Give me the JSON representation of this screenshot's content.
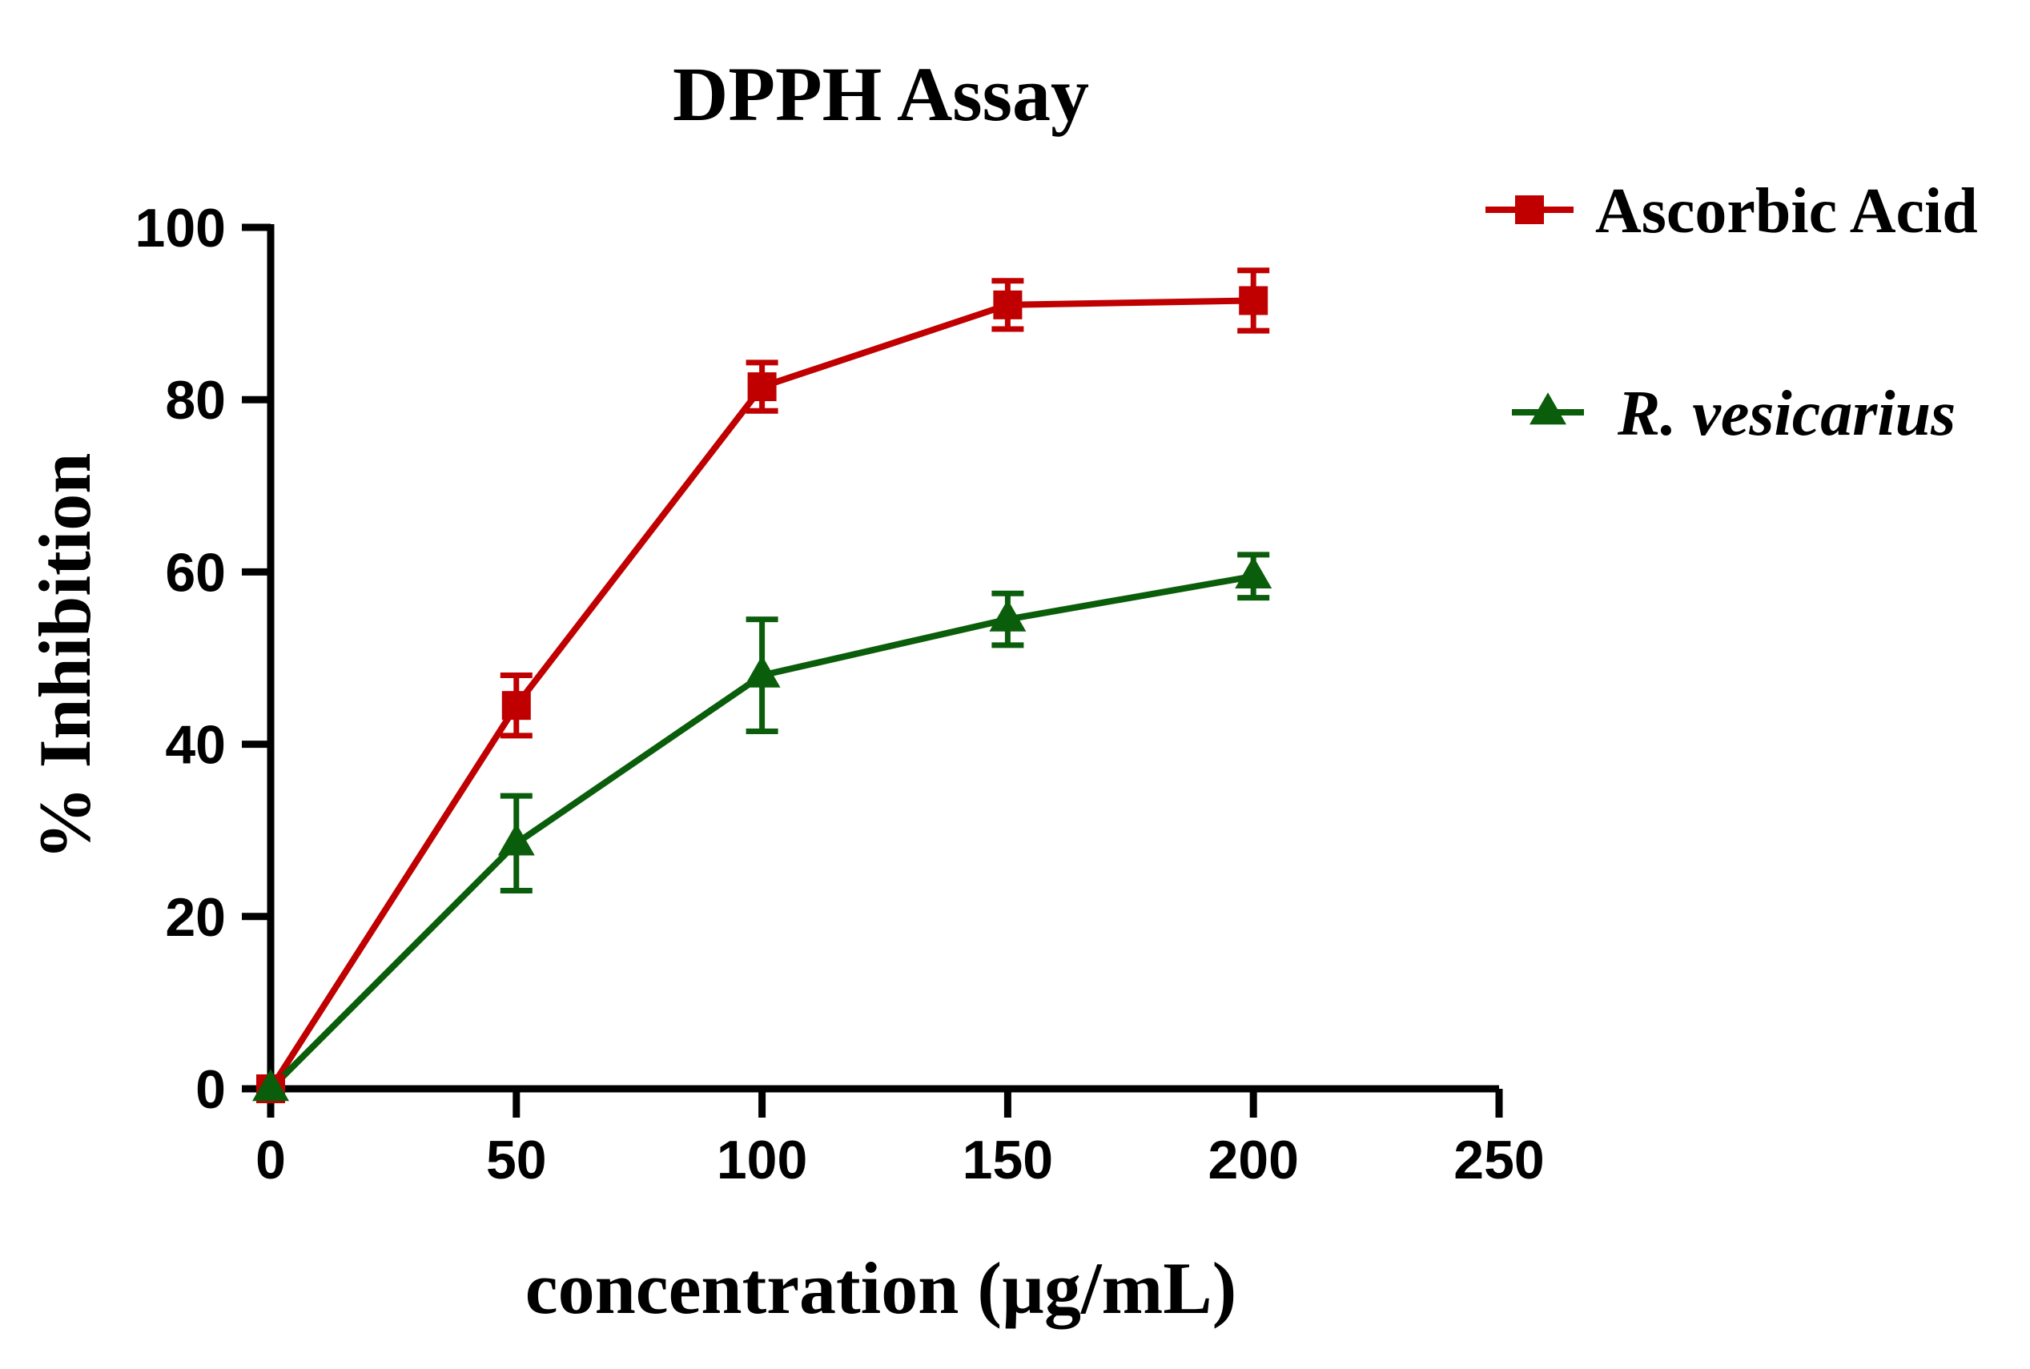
{
  "chart_data": {
    "type": "line",
    "title": "DPPH Assay",
    "xlabel": "concentration (µg/mL)",
    "ylabel": "% Inhibition",
    "xlim": [
      0,
      250
    ],
    "ylim": [
      0,
      100
    ],
    "x_ticks": [
      0,
      50,
      100,
      150,
      200,
      250
    ],
    "y_ticks": [
      0,
      20,
      40,
      60,
      80,
      100
    ],
    "x_tick_labels": [
      "0",
      "50",
      "100",
      "150",
      "200",
      "250"
    ],
    "y_tick_labels": [
      "0",
      "20",
      "40",
      "60",
      "80",
      "100"
    ],
    "grid": false,
    "legend_position": "top-right",
    "series": [
      {
        "name": "Ascorbic Acid",
        "marker": "square",
        "color": "#c00000",
        "x": [
          0,
          50,
          100,
          150,
          200
        ],
        "values": [
          0,
          44.5,
          81.5,
          91,
          91.5
        ],
        "errors": [
          0,
          3.5,
          2.8,
          2.8,
          3.5
        ]
      },
      {
        "name": "R. vesicarius",
        "marker": "triangle",
        "color": "#0a5d0a",
        "x": [
          0,
          50,
          100,
          150,
          200
        ],
        "values": [
          0,
          28.5,
          48,
          54.5,
          59.5
        ],
        "errors": [
          0,
          5.5,
          6.5,
          3,
          2.5
        ]
      }
    ]
  }
}
